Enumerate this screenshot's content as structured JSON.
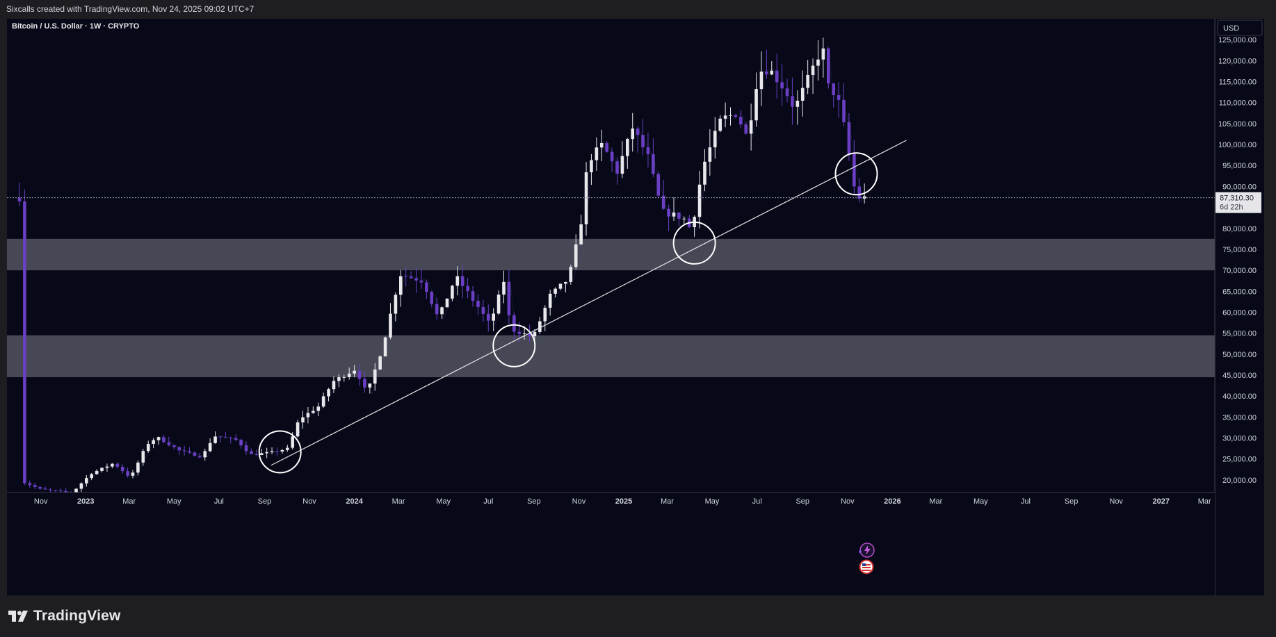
{
  "header": {
    "caption": "Sixcalls created with TradingView.com, Nov 24, 2025 09:02 UTC+7"
  },
  "brand": {
    "name": "TradingView",
    "logo_icon": "tradingview-logo-icon"
  },
  "colors": {
    "background": "#070919",
    "up": "#e8e8ec",
    "down": "#6a3fc4",
    "zone": "#4a4c5a",
    "trendline": "#e6e6e6",
    "axis_text": "#d1d4dc"
  },
  "chart_data": {
    "type": "candlestick",
    "title": "Bitcoin / U.S. Dollar · 1W · CRYPTO",
    "currency_button": "USD",
    "ylim": [
      17000,
      130000
    ],
    "y_ticks": [
      20000,
      25000,
      30000,
      35000,
      40000,
      45000,
      50000,
      55000,
      60000,
      65000,
      70000,
      75000,
      80000,
      85000,
      90000,
      95000,
      100000,
      105000,
      110000,
      115000,
      120000,
      125000
    ],
    "y_tick_labels": [
      "20,000.00",
      "25,000.00",
      "30,000.00",
      "35,000.00",
      "40,000.00",
      "45,000.00",
      "50,000.00",
      "55,000.00",
      "60,000.00",
      "65,000.00",
      "70,000.00",
      "75,000.00",
      "80,000.00",
      "85,000.00",
      "90,000.00",
      "95,000.00",
      "100,000.00",
      "105,000.00",
      "110,000.00",
      "115,000.00",
      "120,000.00",
      "125,000.00"
    ],
    "x_ticks": [
      {
        "label": "Nov",
        "date": "2022-11"
      },
      {
        "label": "2023",
        "date": "2023-01"
      },
      {
        "label": "Mar",
        "date": "2023-03"
      },
      {
        "label": "May",
        "date": "2023-05"
      },
      {
        "label": "Jul",
        "date": "2023-07"
      },
      {
        "label": "Sep",
        "date": "2023-09"
      },
      {
        "label": "Nov",
        "date": "2023-11"
      },
      {
        "label": "2024",
        "date": "2024-01"
      },
      {
        "label": "Mar",
        "date": "2024-03"
      },
      {
        "label": "May",
        "date": "2024-05"
      },
      {
        "label": "Jul",
        "date": "2024-07"
      },
      {
        "label": "Sep",
        "date": "2024-09"
      },
      {
        "label": "Nov",
        "date": "2024-11"
      },
      {
        "label": "2025",
        "date": "2025-01"
      },
      {
        "label": "Mar",
        "date": "2025-03"
      },
      {
        "label": "May",
        "date": "2025-05"
      },
      {
        "label": "Jul",
        "date": "2025-07"
      },
      {
        "label": "Sep",
        "date": "2025-09"
      },
      {
        "label": "Nov",
        "date": "2025-11"
      },
      {
        "label": "2026",
        "date": "2026-01"
      },
      {
        "label": "Mar",
        "date": "2026-03"
      },
      {
        "label": "May",
        "date": "2026-05"
      },
      {
        "label": "Jul",
        "date": "2026-07"
      },
      {
        "label": "Sep",
        "date": "2026-09"
      },
      {
        "label": "Nov",
        "date": "2026-11"
      },
      {
        "label": "2027",
        "date": "2027-01"
      },
      {
        "label": "Mar",
        "date": "2027-03"
      }
    ],
    "price_points": [
      {
        "d": "2022-10-15",
        "p": 19500
      },
      {
        "d": "2022-11-07",
        "p": 17800
      },
      {
        "d": "2022-12-20",
        "p": 16900
      },
      {
        "d": "2023-01-15",
        "p": 21500
      },
      {
        "d": "2023-02-15",
        "p": 24000
      },
      {
        "d": "2023-03-10",
        "p": 20500
      },
      {
        "d": "2023-04-01",
        "p": 28500
      },
      {
        "d": "2023-04-15",
        "p": 30200
      },
      {
        "d": "2023-05-15",
        "p": 27000
      },
      {
        "d": "2023-06-15",
        "p": 25500
      },
      {
        "d": "2023-07-01",
        "p": 30500
      },
      {
        "d": "2023-08-01",
        "p": 29500
      },
      {
        "d": "2023-08-20",
        "p": 26000
      },
      {
        "d": "2023-09-15",
        "p": 26500
      },
      {
        "d": "2023-10-10",
        "p": 27500
      },
      {
        "d": "2023-10-25",
        "p": 34500
      },
      {
        "d": "2023-11-20",
        "p": 37500
      },
      {
        "d": "2023-12-10",
        "p": 43500
      },
      {
        "d": "2024-01-10",
        "p": 46500
      },
      {
        "d": "2024-01-25",
        "p": 40500
      },
      {
        "d": "2024-02-15",
        "p": 51500
      },
      {
        "d": "2024-03-10",
        "p": 69000
      },
      {
        "d": "2024-04-10",
        "p": 67500
      },
      {
        "d": "2024-05-01",
        "p": 58500
      },
      {
        "d": "2024-05-25",
        "p": 68500
      },
      {
        "d": "2024-06-25",
        "p": 61000
      },
      {
        "d": "2024-07-10",
        "p": 57000
      },
      {
        "d": "2024-07-30",
        "p": 68000
      },
      {
        "d": "2024-08-07",
        "p": 56000
      },
      {
        "d": "2024-09-07",
        "p": 54000
      },
      {
        "d": "2024-09-30",
        "p": 64000
      },
      {
        "d": "2024-10-25",
        "p": 68000
      },
      {
        "d": "2024-11-10",
        "p": 80000
      },
      {
        "d": "2024-11-20",
        "p": 96000
      },
      {
        "d": "2024-12-10",
        "p": 100000
      },
      {
        "d": "2024-12-30",
        "p": 93500
      },
      {
        "d": "2025-01-20",
        "p": 104000
      },
      {
        "d": "2025-02-10",
        "p": 97000
      },
      {
        "d": "2025-03-01",
        "p": 84000
      },
      {
        "d": "2025-03-30",
        "p": 82500
      },
      {
        "d": "2025-04-10",
        "p": 79500
      },
      {
        "d": "2025-04-25",
        "p": 94500
      },
      {
        "d": "2025-05-20",
        "p": 106000
      },
      {
        "d": "2025-06-10",
        "p": 107500
      },
      {
        "d": "2025-06-25",
        "p": 101500
      },
      {
        "d": "2025-07-10",
        "p": 117500
      },
      {
        "d": "2025-07-25",
        "p": 118000
      },
      {
        "d": "2025-08-15",
        "p": 113000
      },
      {
        "d": "2025-08-28",
        "p": 108500
      },
      {
        "d": "2025-09-15",
        "p": 115500
      },
      {
        "d": "2025-10-05",
        "p": 123500
      },
      {
        "d": "2025-10-12",
        "p": 114000
      },
      {
        "d": "2025-10-25",
        "p": 111500
      },
      {
        "d": "2025-11-05",
        "p": 103000
      },
      {
        "d": "2025-11-13",
        "p": 94500
      },
      {
        "d": "2025-11-20",
        "p": 86500
      },
      {
        "d": "2025-11-24",
        "p": 87310
      }
    ],
    "zones": [
      {
        "low": 70000,
        "high": 77500
      },
      {
        "low": 44500,
        "high": 54500
      }
    ],
    "trendline": {
      "start": {
        "d": "2023-09-10",
        "p": 23500
      },
      "end": {
        "d": "2026-01-20",
        "p": 101000
      }
    },
    "circles": [
      {
        "d": "2023-09-22",
        "p": 26700
      },
      {
        "d": "2024-08-05",
        "p": 52000
      },
      {
        "d": "2025-04-07",
        "p": 76500
      },
      {
        "d": "2025-11-13",
        "p": 93000
      }
    ],
    "last_price": {
      "value": 87310.3,
      "label": "87,310.30",
      "countdown": "6d 22h"
    },
    "event_icons": [
      "flash-event-icon",
      "us-flag-event-icon"
    ]
  }
}
